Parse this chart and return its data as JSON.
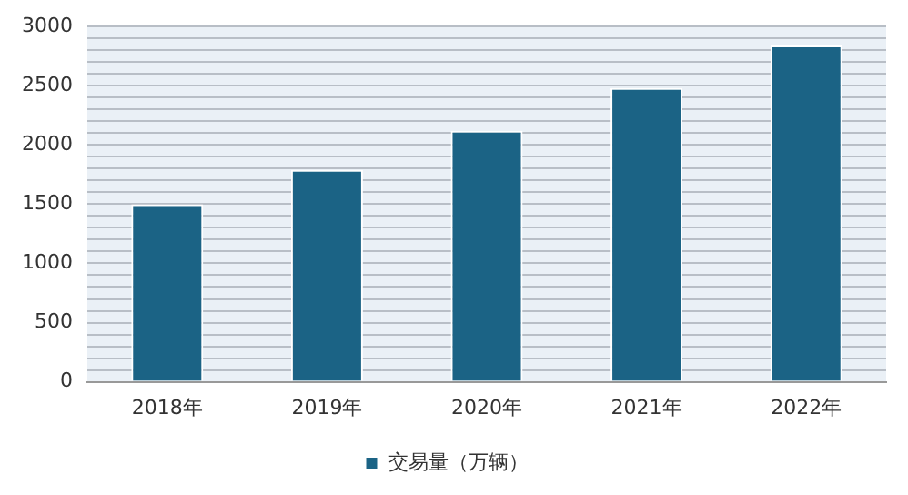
{
  "chart_data": {
    "type": "bar",
    "categories": [
      "2018年",
      "2019年",
      "2020年",
      "2021年",
      "2022年"
    ],
    "series": [
      {
        "name": "交易量（万辆）",
        "color": "#1b6385",
        "values": [
          1500,
          1790,
          2120,
          2480,
          2840
        ]
      }
    ],
    "ylim": [
      0,
      3000
    ],
    "yticks": [
      0,
      {
        "value": 100,
        "label": null
      },
      {
        "value": 200,
        "label": null
      },
      {
        "value": 300,
        "label": null
      },
      {
        "value": 400,
        "label": null
      },
      500,
      {
        "value": 600,
        "label": null
      },
      {
        "value": 700,
        "label": null
      },
      {
        "value": 800,
        "label": null
      },
      {
        "value": 900,
        "label": null
      },
      1000,
      {
        "value": 1100,
        "label": null
      },
      {
        "value": 1200,
        "label": null
      },
      {
        "value": 1300,
        "label": null
      },
      {
        "value": 1400,
        "label": null
      },
      1500,
      {
        "value": 1600,
        "label": null
      },
      {
        "value": 1700,
        "label": null
      },
      {
        "value": 1800,
        "label": null
      },
      {
        "value": 1900,
        "label": null
      },
      2000,
      {
        "value": 2100,
        "label": null
      },
      {
        "value": 2200,
        "label": null
      },
      {
        "value": 2300,
        "label": null
      },
      {
        "value": 2400,
        "label": null
      },
      2500,
      {
        "value": 2600,
        "label": null
      },
      {
        "value": 2700,
        "label": null
      },
      {
        "value": 2800,
        "label": null
      },
      {
        "value": 2900,
        "label": null
      },
      3000
    ],
    "grid": "y",
    "legend": "bottom"
  }
}
